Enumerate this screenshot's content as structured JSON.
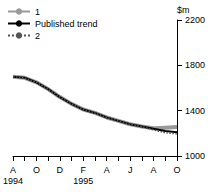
{
  "chart_data": {
    "type": "line",
    "y_label": "$m",
    "categories": [
      "A\n1994",
      null,
      "O",
      null,
      "D",
      null,
      "F\n1995",
      null,
      "A",
      null,
      "J",
      null,
      "A",
      null,
      "O"
    ],
    "series": [
      {
        "name": "1",
        "color": "#999999",
        "line_style": "solid",
        "values": [
          1700,
          1690,
          1650,
          1590,
          1520,
          1460,
          1410,
          1380,
          1340,
          1310,
          1280,
          1260,
          1245,
          1250,
          1255
        ]
      },
      {
        "name": "Published trend",
        "color": "#000000",
        "line_style": "solid",
        "values": [
          1700,
          1690,
          1650,
          1590,
          1520,
          1460,
          1410,
          1380,
          1340,
          1310,
          1280,
          1260,
          1240,
          1220,
          1210
        ]
      },
      {
        "name": "2",
        "color": "#555555",
        "line_style": "dotted",
        "values": [
          1700,
          1690,
          1650,
          1590,
          1520,
          1460,
          1410,
          1380,
          1340,
          1310,
          1280,
          1260,
          1230,
          1205,
          1195
        ]
      }
    ],
    "ylim": [
      1000,
      2200
    ],
    "yticks": [
      1000,
      1400,
      1800,
      2200
    ],
    "grid": false,
    "legend": "top-left",
    "marker": "none"
  }
}
